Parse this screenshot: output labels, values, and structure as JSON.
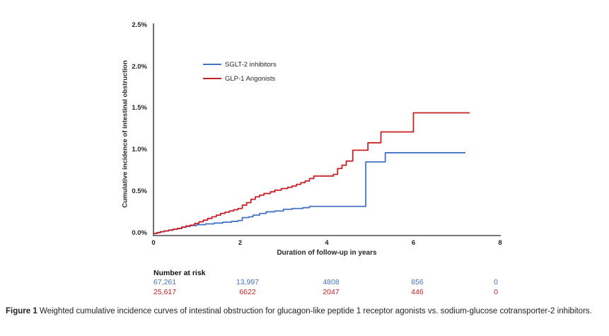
{
  "chart_data": {
    "type": "line",
    "subtype": "cumulative-incidence-step",
    "title": "",
    "xlabel": "Duration of follow-up in years",
    "ylabel": "Cumulative incidence of intestinal obstruction",
    "xlim": [
      0,
      8
    ],
    "ylim_percent": [
      0,
      2.5
    ],
    "x_ticks": [
      "0",
      "2",
      "4",
      "6",
      "8"
    ],
    "y_ticks_top_down": [
      "2.5%",
      "2.0%",
      "1.5%",
      "1.0%",
      "0.5%",
      "0.0%"
    ],
    "grid": false,
    "legend_position": "upper-left-inside",
    "series": [
      {
        "name": "SGLT-2 inhibitors",
        "color": "#4472C4",
        "steps_year_percent": [
          [
            0,
            0
          ],
          [
            0.08,
            0.01
          ],
          [
            0.16,
            0.02
          ],
          [
            0.25,
            0.03
          ],
          [
            0.35,
            0.04
          ],
          [
            0.45,
            0.05
          ],
          [
            0.55,
            0.06
          ],
          [
            0.65,
            0.075
          ],
          [
            0.75,
            0.085
          ],
          [
            0.85,
            0.095
          ],
          [
            1.0,
            0.105
          ],
          [
            1.2,
            0.115
          ],
          [
            1.4,
            0.125
          ],
          [
            1.6,
            0.135
          ],
          [
            1.8,
            0.145
          ],
          [
            1.95,
            0.155
          ],
          [
            2.05,
            0.19
          ],
          [
            2.2,
            0.2
          ],
          [
            2.3,
            0.22
          ],
          [
            2.45,
            0.24
          ],
          [
            2.6,
            0.26
          ],
          [
            2.8,
            0.27
          ],
          [
            3.0,
            0.29
          ],
          [
            3.2,
            0.3
          ],
          [
            3.45,
            0.31
          ],
          [
            3.6,
            0.325
          ],
          [
            4.9,
            0.86
          ],
          [
            5.35,
            0.97
          ],
          [
            7.2,
            0.97
          ]
        ]
      },
      {
        "name": "GLP-1 Angonists",
        "color": "#C42026",
        "steps_year_percent": [
          [
            0,
            0
          ],
          [
            0.08,
            0.01
          ],
          [
            0.16,
            0.02
          ],
          [
            0.25,
            0.03
          ],
          [
            0.35,
            0.04
          ],
          [
            0.45,
            0.05
          ],
          [
            0.55,
            0.06
          ],
          [
            0.65,
            0.075
          ],
          [
            0.75,
            0.09
          ],
          [
            0.85,
            0.1
          ],
          [
            0.95,
            0.12
          ],
          [
            1.05,
            0.14
          ],
          [
            1.15,
            0.16
          ],
          [
            1.25,
            0.18
          ],
          [
            1.35,
            0.2
          ],
          [
            1.45,
            0.22
          ],
          [
            1.55,
            0.24
          ],
          [
            1.65,
            0.255
          ],
          [
            1.75,
            0.27
          ],
          [
            1.85,
            0.285
          ],
          [
            1.95,
            0.3
          ],
          [
            2.05,
            0.34
          ],
          [
            2.15,
            0.37
          ],
          [
            2.25,
            0.41
          ],
          [
            2.35,
            0.44
          ],
          [
            2.45,
            0.46
          ],
          [
            2.55,
            0.48
          ],
          [
            2.7,
            0.5
          ],
          [
            2.8,
            0.52
          ],
          [
            2.95,
            0.54
          ],
          [
            3.1,
            0.555
          ],
          [
            3.2,
            0.57
          ],
          [
            3.3,
            0.59
          ],
          [
            3.4,
            0.61
          ],
          [
            3.5,
            0.63
          ],
          [
            3.6,
            0.66
          ],
          [
            3.7,
            0.69
          ],
          [
            4.15,
            0.71
          ],
          [
            4.25,
            0.78
          ],
          [
            4.35,
            0.82
          ],
          [
            4.45,
            0.87
          ],
          [
            4.6,
            1.0
          ],
          [
            4.95,
            1.09
          ],
          [
            5.25,
            1.22
          ],
          [
            6.0,
            1.45
          ],
          [
            7.3,
            1.45
          ]
        ]
      }
    ]
  },
  "legend": {
    "items": [
      {
        "label": "SGLT-2 inhibitors",
        "color": "#4472C4"
      },
      {
        "label": "GLP-1 Angonists",
        "color": "#C42026"
      }
    ]
  },
  "risk_table": {
    "header": "Number at risk",
    "rows": [
      {
        "name": "SGLT-2 inhibitors",
        "color": "#4472C4",
        "values": [
          "67,261",
          "13,997",
          "4808",
          "856",
          "0"
        ]
      },
      {
        "name": "GLP-1 Angonists",
        "color": "#C42026",
        "values": [
          "25,617",
          "6622",
          "2047",
          "446",
          "0"
        ]
      }
    ]
  },
  "caption": {
    "label": "Figure 1",
    "text": "Weighted cumulative incidence curves of intestinal obstruction for glucagon-like peptide 1 receptor agonists vs. sodium-glucose cotransporter-2 inhibitors."
  },
  "colors": {
    "sglt2": "#4472C4",
    "glp1": "#C42026",
    "axis": "#4a4a4a",
    "text": "#262626"
  }
}
